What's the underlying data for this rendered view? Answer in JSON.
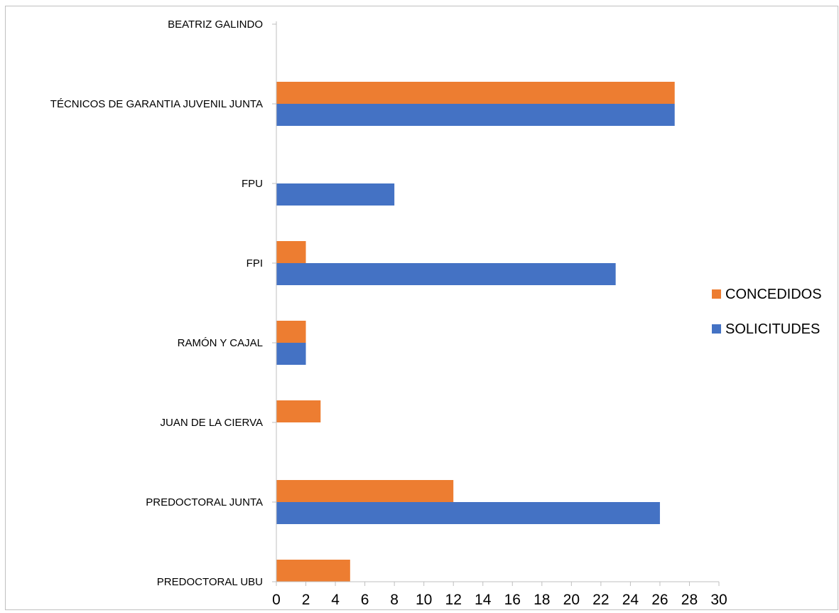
{
  "chart_data": {
    "type": "bar",
    "orientation": "horizontal",
    "categories": [
      "PREDOCTORAL UBU",
      "PREDOCTORAL JUNTA",
      "JUAN DE LA CIERVA",
      "RAMÓN Y CAJAL",
      "FPI",
      "FPU",
      "TÉCNICOS DE GARANTIA JUVENIL JUNTA",
      "BEATRIZ GALINDO"
    ],
    "series": [
      {
        "name": "SOLICITUDES",
        "color": "#4472c4",
        "values": [
          0,
          26,
          0,
          2,
          23,
          8,
          27,
          0
        ]
      },
      {
        "name": "CONCEDIDOS",
        "color": "#ed7d31",
        "values": [
          5,
          12,
          3,
          2,
          2,
          0,
          27,
          0
        ]
      }
    ],
    "xlim": [
      0,
      30
    ],
    "x_ticks": [
      "0",
      "2",
      "4",
      "6",
      "8",
      "10",
      "12",
      "14",
      "16",
      "18",
      "20",
      "22",
      "24",
      "26",
      "28",
      "30"
    ],
    "legend": {
      "placement": "right",
      "order": [
        "CONCEDIDOS",
        "SOLICITUDES"
      ]
    },
    "grid": false,
    "title": "",
    "xlabel": "",
    "ylabel": ""
  }
}
